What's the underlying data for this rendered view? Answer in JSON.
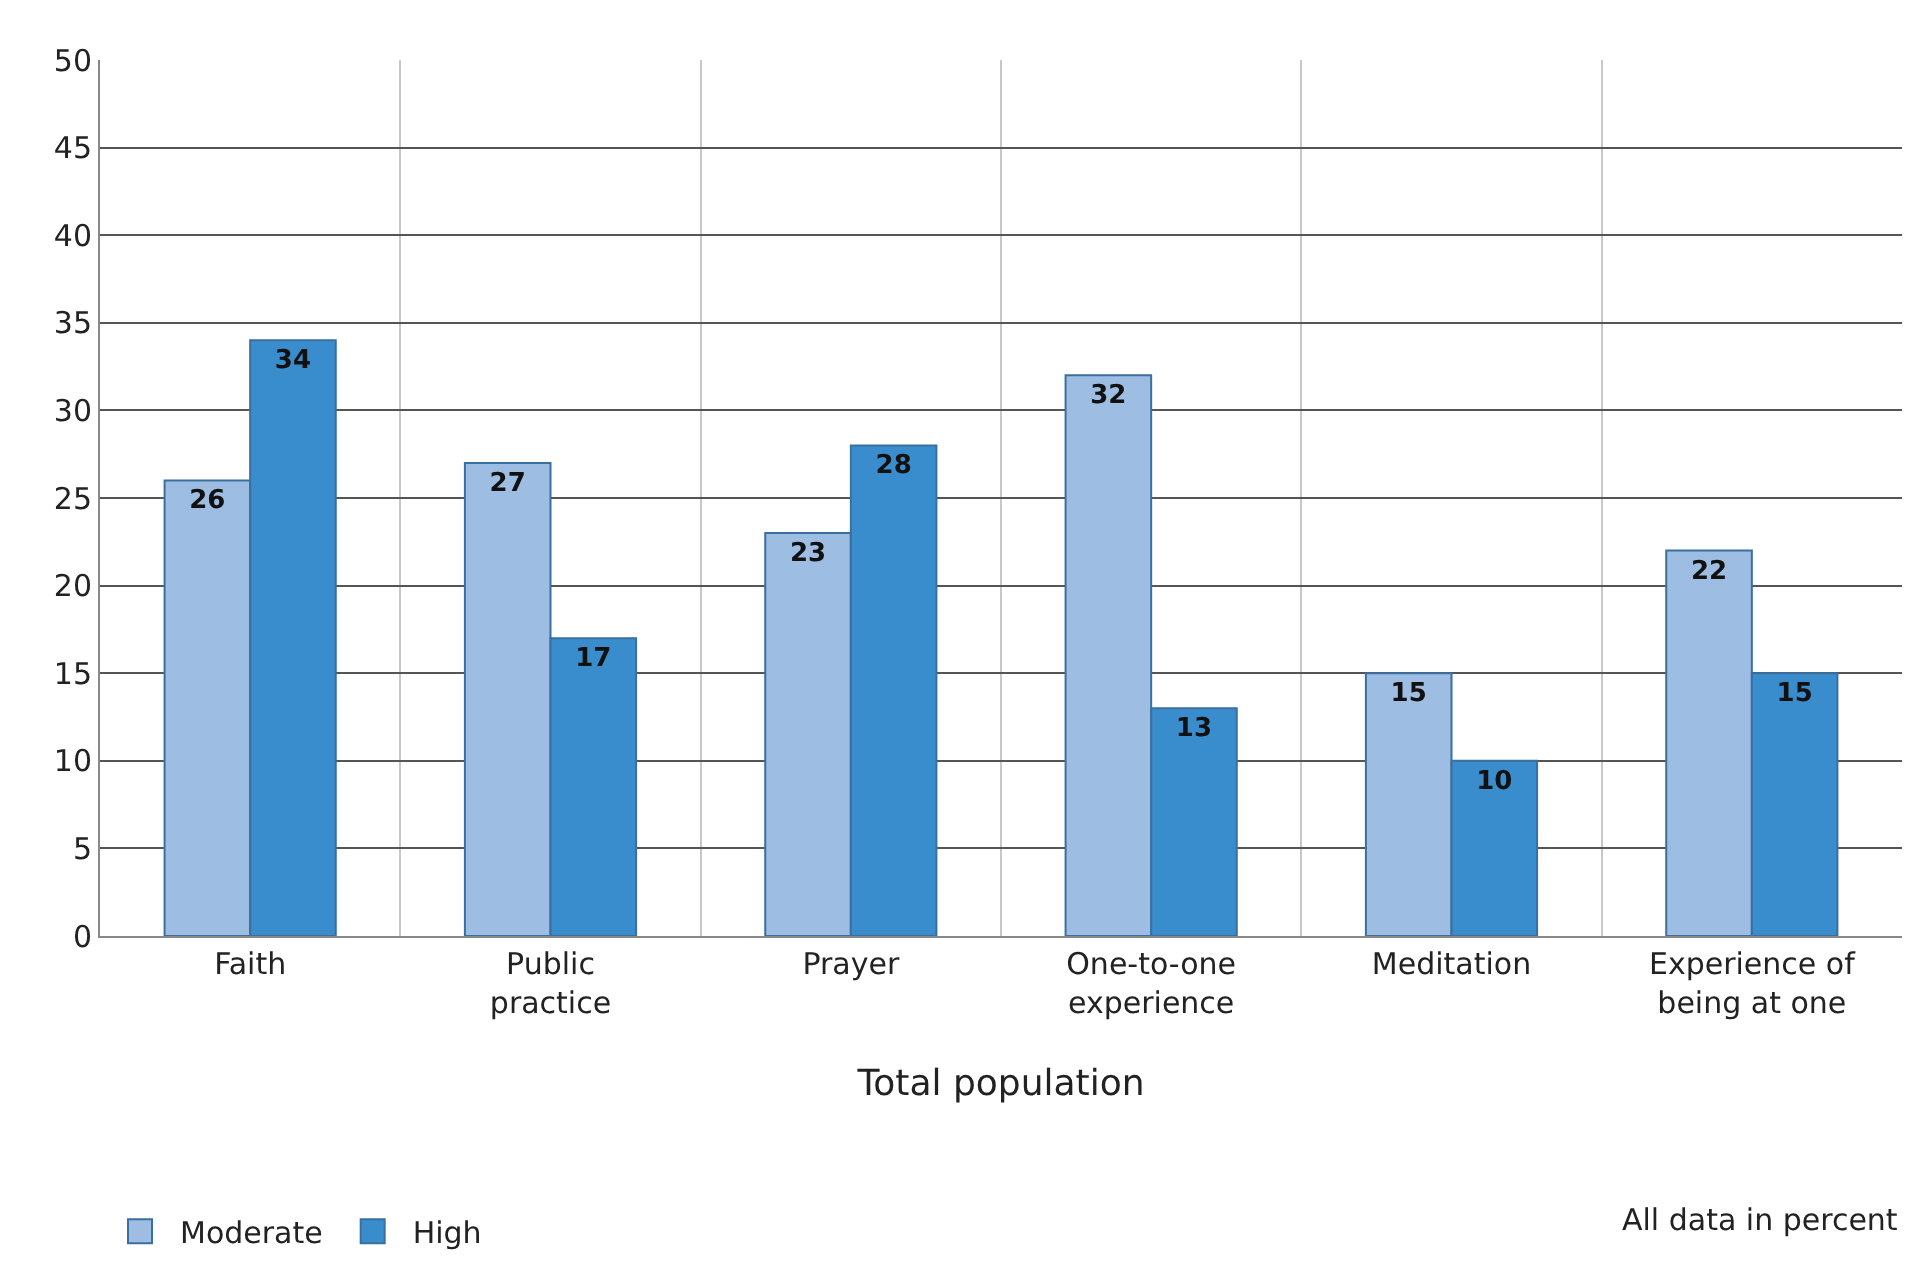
{
  "chart_data": {
    "type": "bar",
    "xlabel": "Total population",
    "categories": [
      "Faith",
      "Public practice",
      "Prayer",
      "One-to-one experience",
      "Meditation",
      "Experience of being at one"
    ],
    "series": [
      {
        "name": "Moderate",
        "color": "#9dbde3",
        "values": [
          26,
          27,
          23,
          32,
          15,
          22
        ]
      },
      {
        "name": "High",
        "color": "#3a8dcd",
        "values": [
          34,
          17,
          28,
          13,
          10,
          15
        ]
      }
    ],
    "ylim": [
      0,
      50
    ],
    "yticks": [
      0,
      5,
      10,
      15,
      20,
      25,
      30,
      35,
      40,
      45,
      50
    ],
    "grid": true,
    "legend": "bottom left",
    "data_labels": true,
    "annotations": [
      "All data in percent"
    ]
  }
}
